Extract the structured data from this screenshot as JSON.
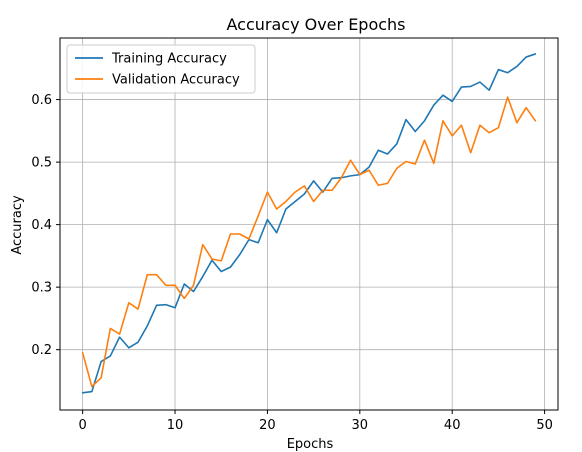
{
  "chart_data": {
    "type": "line",
    "title": "Accuracy Over Epochs",
    "xlabel": "Epochs",
    "ylabel": "Accuracy",
    "xlim": [
      -2.45,
      51.45
    ],
    "ylim": [
      0.1035,
      0.6985
    ],
    "xticks": [
      0,
      10,
      20,
      30,
      40,
      50
    ],
    "yticks": [
      0.2,
      0.3,
      0.4,
      0.5,
      0.6
    ],
    "grid": true,
    "legend_position": "top-left",
    "x": [
      0,
      1,
      2,
      3,
      4,
      5,
      6,
      7,
      8,
      9,
      10,
      11,
      12,
      13,
      14,
      15,
      16,
      17,
      18,
      19,
      20,
      21,
      22,
      23,
      24,
      25,
      26,
      27,
      28,
      29,
      30,
      31,
      32,
      33,
      34,
      35,
      36,
      37,
      38,
      39,
      40,
      41,
      42,
      43,
      44,
      45,
      46,
      47,
      48,
      49
    ],
    "series": [
      {
        "name": "Training Accuracy",
        "color": "#1f77b4",
        "values": [
          0.131,
          0.133,
          0.181,
          0.19,
          0.22,
          0.203,
          0.212,
          0.238,
          0.271,
          0.272,
          0.267,
          0.305,
          0.293,
          0.317,
          0.343,
          0.325,
          0.332,
          0.352,
          0.376,
          0.371,
          0.408,
          0.387,
          0.425,
          0.437,
          0.449,
          0.47,
          0.452,
          0.474,
          0.475,
          0.478,
          0.48,
          0.492,
          0.519,
          0.513,
          0.529,
          0.568,
          0.549,
          0.566,
          0.591,
          0.607,
          0.597,
          0.62,
          0.621,
          0.628,
          0.615,
          0.648,
          0.643,
          0.653,
          0.668,
          0.673
        ]
      },
      {
        "name": "Validation Accuracy",
        "color": "#ff7f0e",
        "values": [
          0.195,
          0.141,
          0.155,
          0.234,
          0.225,
          0.275,
          0.265,
          0.32,
          0.32,
          0.303,
          0.303,
          0.282,
          0.303,
          0.368,
          0.345,
          0.342,
          0.385,
          0.385,
          0.377,
          0.414,
          0.452,
          0.425,
          0.437,
          0.452,
          0.462,
          0.437,
          0.455,
          0.455,
          0.475,
          0.503,
          0.48,
          0.487,
          0.463,
          0.466,
          0.49,
          0.501,
          0.497,
          0.535,
          0.498,
          0.566,
          0.542,
          0.559,
          0.515,
          0.559,
          0.547,
          0.555,
          0.604,
          0.563,
          0.587,
          0.566
        ]
      }
    ]
  }
}
